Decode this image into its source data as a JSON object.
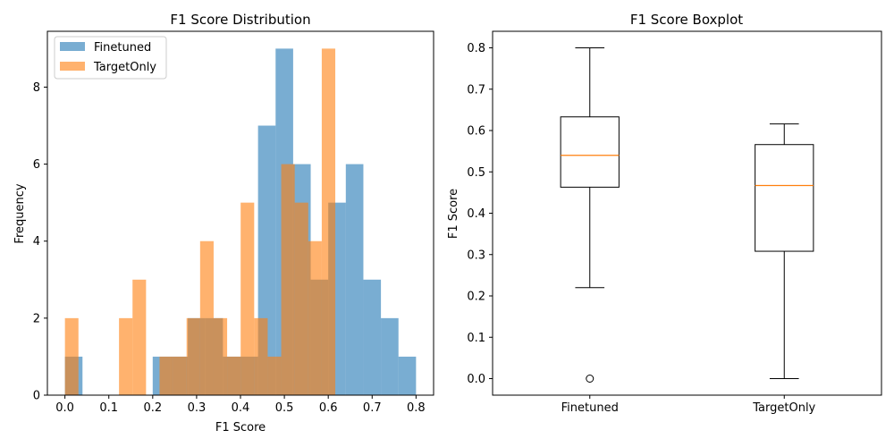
{
  "chart_data": [
    {
      "type": "histogram",
      "title": "F1 Score Distribution",
      "xlabel": "F1 Score",
      "ylabel": "Frequency",
      "xlim": [
        -0.04,
        0.84
      ],
      "ylim": [
        0,
        9.45
      ],
      "xticks": [
        0.0,
        0.1,
        0.2,
        0.3,
        0.4,
        0.5,
        0.6,
        0.7,
        0.8
      ],
      "xtick_labels": [
        "0.0",
        "0.1",
        "0.2",
        "0.3",
        "0.4",
        "0.5",
        "0.6",
        "0.7",
        "0.8"
      ],
      "yticks": [
        0,
        2,
        4,
        6,
        8
      ],
      "ytick_labels": [
        "0",
        "2",
        "4",
        "6",
        "8"
      ],
      "legend": "upper-left",
      "series": [
        {
          "name": "Finetuned",
          "color": "#1f77b4",
          "bin_edges": [
            0.0,
            0.04,
            0.08,
            0.12,
            0.16,
            0.2,
            0.24,
            0.28,
            0.32,
            0.36,
            0.4,
            0.44,
            0.48,
            0.52,
            0.56,
            0.6,
            0.64,
            0.68,
            0.72,
            0.76,
            0.8
          ],
          "counts": [
            1,
            0,
            0,
            0,
            0,
            1,
            1,
            2,
            2,
            1,
            1,
            7,
            9,
            6,
            3,
            5,
            6,
            3,
            2,
            1
          ]
        },
        {
          "name": "TargetOnly",
          "color": "#ff7f0e",
          "bin_edges": [
            0.0,
            0.0308,
            0.0616,
            0.0924,
            0.1232,
            0.154,
            0.1848,
            0.2156,
            0.2464,
            0.2772,
            0.308,
            0.3388,
            0.3696,
            0.4004,
            0.4312,
            0.462,
            0.4928,
            0.5236,
            0.5544,
            0.5852,
            0.616
          ],
          "counts": [
            2,
            0,
            0,
            0,
            2,
            3,
            0,
            1,
            1,
            2,
            4,
            2,
            1,
            5,
            2,
            1,
            6,
            5,
            4,
            9
          ]
        }
      ]
    },
    {
      "type": "boxplot",
      "title": "F1 Score Boxplot",
      "xlabel": "",
      "ylabel": "F1 Score",
      "ylim": [
        -0.04,
        0.84
      ],
      "yticks": [
        0.0,
        0.1,
        0.2,
        0.3,
        0.4,
        0.5,
        0.6,
        0.7,
        0.8
      ],
      "ytick_labels": [
        "0.0",
        "0.1",
        "0.2",
        "0.3",
        "0.4",
        "0.5",
        "0.6",
        "0.7",
        "0.8"
      ],
      "categories": [
        "Finetuned",
        "TargetOnly"
      ],
      "median_color": "#ff7f0e",
      "boxes": [
        {
          "name": "Finetuned",
          "whisker_low": 0.22,
          "q1": 0.463,
          "median": 0.54,
          "q3": 0.633,
          "whisker_high": 0.8,
          "outliers": [
            0.0
          ]
        },
        {
          "name": "TargetOnly",
          "whisker_low": 0.0,
          "q1": 0.308,
          "median": 0.467,
          "q3": 0.566,
          "whisker_high": 0.616,
          "outliers": []
        }
      ]
    }
  ]
}
